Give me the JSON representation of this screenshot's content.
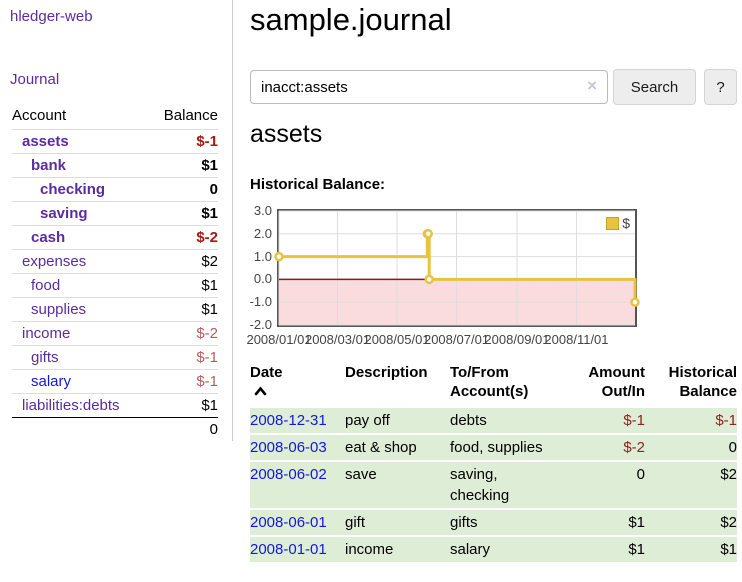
{
  "app": {
    "brand": "hledger-web",
    "nav": {
      "journal": "Journal"
    }
  },
  "sidebar": {
    "header": {
      "account": "Account",
      "balance": "Balance"
    },
    "accounts": [
      {
        "name": "assets",
        "indent": 1,
        "bold": true,
        "balance": "$-1",
        "neg": "strong"
      },
      {
        "name": "bank",
        "indent": 2,
        "bold": true,
        "balance": "$1",
        "neg": "none"
      },
      {
        "name": "checking",
        "indent": 3,
        "bold": true,
        "balance": "0",
        "neg": "none"
      },
      {
        "name": "saving",
        "indent": 3,
        "bold": true,
        "balance": "$1",
        "neg": "none"
      },
      {
        "name": "cash",
        "indent": 2,
        "bold": true,
        "balance": "$-2",
        "neg": "strong"
      },
      {
        "name": "expenses",
        "indent": 1,
        "bold": false,
        "balance": "$2",
        "neg": "none"
      },
      {
        "name": "food",
        "indent": 2,
        "bold": false,
        "balance": "$1",
        "neg": "none"
      },
      {
        "name": "supplies",
        "indent": 2,
        "bold": false,
        "balance": "$1",
        "neg": "none"
      },
      {
        "name": "income",
        "indent": 1,
        "bold": false,
        "balance": "$-2",
        "neg": "muted"
      },
      {
        "name": "gifts",
        "indent": 2,
        "bold": false,
        "balance": "$-1",
        "neg": "muted"
      },
      {
        "name": "salary",
        "indent": 2,
        "bold": false,
        "balance": "$-1",
        "neg": "muted",
        "active": true
      },
      {
        "name": "liabilities:debts",
        "indent": 1,
        "bold": false,
        "balance": "$1",
        "neg": "none"
      }
    ],
    "total": "0"
  },
  "main": {
    "title": "sample.journal",
    "search": {
      "value": "inacct:assets",
      "clear_icon": "×",
      "search_button": "Search",
      "help_button": "?"
    },
    "account_heading": "assets",
    "chart_title": "Historical Balance:"
  },
  "chart_data": {
    "type": "line",
    "step": true,
    "title": "Historical Balance:",
    "series": [
      {
        "name": "$",
        "color": "#E8C340",
        "points": [
          [
            "2008-01-01",
            1
          ],
          [
            "2008-06-01",
            2
          ],
          [
            "2008-06-02",
            2
          ],
          [
            "2008-06-03",
            0
          ],
          [
            "2008-12-31",
            -1
          ]
        ]
      }
    ],
    "xlim": [
      "2008-01-01",
      "2008-12-31"
    ],
    "ylim": [
      -2,
      3
    ],
    "yticks": [
      3.0,
      2.0,
      1.0,
      0.0,
      -1.0,
      -2.0
    ],
    "ytick_labels": [
      "3.0",
      "2.0",
      "1.0",
      "0.0",
      "-1.0",
      "-2.0"
    ],
    "xticks": [
      "2008-01-01",
      "2008-03-01",
      "2008-05-01",
      "2008-07-01",
      "2008-09-01",
      "2008-11-01"
    ],
    "xtick_labels": [
      "2008/01/01",
      "2008/03/01",
      "2008/05/01",
      "2008/07/01",
      "2008/09/01",
      "2008/11/01"
    ],
    "grid": true,
    "legend": {
      "position": "top-right",
      "label": "$",
      "swatch_color": "#E8C340"
    },
    "negative_fill": "#FADCDE",
    "zero_line_color": "#871A1A"
  },
  "register": {
    "headers": {
      "date": "Date",
      "description": "Description",
      "account_line1": "To/From",
      "account_line2": "Account(s)",
      "amount_line1": "Amount",
      "amount_line2": "Out/In",
      "balance_line1": "Historical",
      "balance_line2": "Balance"
    },
    "rows": [
      {
        "date": "2008-12-31",
        "description": "pay off",
        "accounts": "debts",
        "amount": "$-1",
        "amount_neg": true,
        "balance": "$-1",
        "balance_neg": true
      },
      {
        "date": "2008-06-03",
        "description": "eat & shop",
        "accounts": "food, supplies",
        "amount": "$-2",
        "amount_neg": true,
        "balance": "0",
        "balance_neg": false
      },
      {
        "date": "2008-06-02",
        "description": "save",
        "accounts": "saving, checking",
        "amount": "0",
        "amount_neg": false,
        "balance": "$2",
        "balance_neg": false
      },
      {
        "date": "2008-06-01",
        "description": "gift",
        "accounts": "gifts",
        "amount": "$1",
        "amount_neg": false,
        "balance": "$2",
        "balance_neg": false
      },
      {
        "date": "2008-01-01",
        "description": "income",
        "accounts": "salary",
        "amount": "$1",
        "amount_neg": false,
        "balance": "$1",
        "balance_neg": false
      }
    ]
  },
  "colors": {
    "link_purple": "#5A2CA0",
    "link_blue": "#1417DD",
    "neg_strong": "#A81817",
    "neg_muted": "#B2605E",
    "register_neg": "#8F2222",
    "row_green": "#DEEDD6",
    "chart_line": "#E8C340"
  }
}
